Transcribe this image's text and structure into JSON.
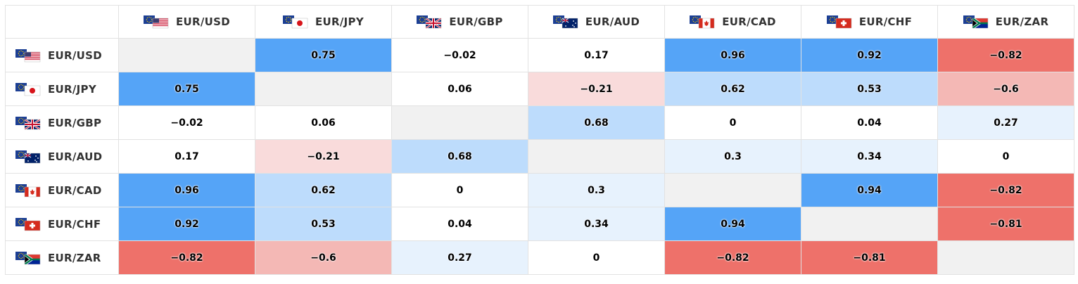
{
  "chart_data": {
    "type": "heatmap",
    "title": "",
    "rows": [
      "EUR/USD",
      "EUR/JPY",
      "EUR/GBP",
      "EUR/AUD",
      "EUR/CAD",
      "EUR/CHF",
      "EUR/ZAR"
    ],
    "columns": [
      "EUR/USD",
      "EUR/JPY",
      "EUR/GBP",
      "EUR/AUD",
      "EUR/CAD",
      "EUR/CHF",
      "EUR/ZAR"
    ],
    "values": [
      [
        null,
        0.75,
        -0.02,
        0.17,
        0.96,
        0.92,
        -0.82
      ],
      [
        0.75,
        null,
        0.06,
        -0.21,
        0.62,
        0.53,
        -0.6
      ],
      [
        -0.02,
        0.06,
        null,
        0.68,
        0,
        0.04,
        0.27
      ],
      [
        0.17,
        -0.21,
        0.68,
        null,
        0.3,
        0.34,
        0
      ],
      [
        0.96,
        0.62,
        0,
        0.3,
        null,
        0.94,
        -0.82
      ],
      [
        0.92,
        0.53,
        0.04,
        0.34,
        0.94,
        null,
        -0.81
      ],
      [
        -0.82,
        -0.6,
        0.27,
        0,
        -0.82,
        -0.81,
        null
      ]
    ],
    "display": [
      [
        "",
        "0.75",
        "−0.02",
        "0.17",
        "0.96",
        "0.92",
        "−0.82"
      ],
      [
        "0.75",
        "",
        "0.06",
        "−0.21",
        "0.62",
        "0.53",
        "−0.6"
      ],
      [
        "−0.02",
        "0.06",
        "",
        "0.68",
        "0",
        "0.04",
        "0.27"
      ],
      [
        "0.17",
        "−0.21",
        "0.68",
        "",
        "0.3",
        "0.34",
        "0"
      ],
      [
        "0.96",
        "0.62",
        "0",
        "0.3",
        "",
        "0.94",
        "−0.82"
      ],
      [
        "0.92",
        "0.53",
        "0.04",
        "0.34",
        "0.94",
        "",
        "−0.81"
      ],
      [
        "−0.82",
        "−0.6",
        "0.27",
        "0",
        "−0.82",
        "−0.81",
        ""
      ]
    ],
    "flags": [
      "us-flag-icon",
      "jp-flag-icon",
      "gb-flag-icon",
      "au-flag-icon",
      "ca-flag-icon",
      "ch-flag-icon",
      "za-flag-icon"
    ],
    "colors": {
      "strong_positive": "#55a4f7",
      "moderate_positive": "#bddcfc",
      "weak_positive": "#e7f2fd",
      "neutral": "#ffffff",
      "weak_negative": "#f9dbdb",
      "moderate_negative": "#f4b8b5",
      "strong_negative": "#ee716a",
      "diagonal": "#f1f1f1"
    }
  }
}
